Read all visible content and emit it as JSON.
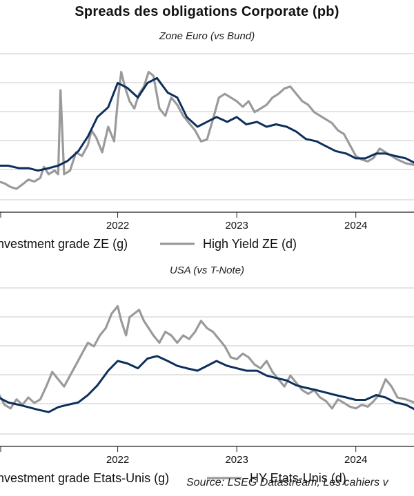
{
  "title": "Spreads des obligations Corporate (pb)",
  "source": "Source: LSEG Datastream, Les cahiers v",
  "colors": {
    "ig": "#0d2f5c",
    "hy": "#9a9a9a",
    "grid": "#c8c8c8"
  },
  "chart_data": [
    {
      "type": "line",
      "subtitle": "Zone Euro (vs Bund)",
      "x_ticks": [
        "2022",
        "2023",
        "2024"
      ],
      "series": [
        {
          "name": "Investment grade ZE (g)",
          "axis": "left",
          "x": [
            2021.0,
            2021.08,
            2021.17,
            2021.25,
            2021.33,
            2021.42,
            2021.5,
            2021.58,
            2021.67,
            2021.75,
            2021.83,
            2021.92,
            2022.0,
            2022.08,
            2022.17,
            2022.25,
            2022.33,
            2022.42,
            2022.5,
            2022.58,
            2022.67,
            2022.75,
            2022.83,
            2022.92,
            2023.0,
            2023.08,
            2023.17,
            2023.25,
            2023.33,
            2023.42,
            2023.5,
            2023.58,
            2023.67,
            2023.75,
            2023.83,
            2023.92,
            2024.0,
            2024.08,
            2024.17,
            2024.25,
            2024.33,
            2024.42,
            2024.5
          ],
          "values": [
            94,
            94,
            93,
            93,
            92,
            93,
            94,
            96,
            100,
            106,
            114,
            118,
            128,
            126,
            122,
            128,
            130,
            124,
            122,
            114,
            110,
            112,
            114,
            112,
            114,
            111,
            112,
            110,
            111,
            110,
            108,
            105,
            104,
            102,
            100,
            99,
            97,
            97,
            99,
            99,
            98,
            97,
            95
          ]
        },
        {
          "name": "High Yield ZE (d)",
          "axis": "right",
          "x": [
            2021.0,
            2021.05,
            2021.1,
            2021.15,
            2021.2,
            2021.25,
            2021.3,
            2021.35,
            2021.38,
            2021.42,
            2021.47,
            2021.5,
            2021.52,
            2021.55,
            2021.6,
            2021.65,
            2021.7,
            2021.75,
            2021.78,
            2021.82,
            2021.87,
            2021.92,
            2021.97,
            2022.0,
            2022.03,
            2022.06,
            2022.1,
            2022.14,
            2022.18,
            2022.22,
            2022.26,
            2022.3,
            2022.35,
            2022.4,
            2022.45,
            2022.5,
            2022.55,
            2022.6,
            2022.65,
            2022.7,
            2022.75,
            2022.8,
            2022.85,
            2022.9,
            2022.95,
            2023.0,
            2023.05,
            2023.1,
            2023.15,
            2023.2,
            2023.25,
            2023.3,
            2023.35,
            2023.4,
            2023.45,
            2023.5,
            2023.55,
            2023.6,
            2023.65,
            2023.7,
            2023.75,
            2023.8,
            2023.85,
            2023.9,
            2023.95,
            2024.0,
            2024.05,
            2024.1,
            2024.15,
            2024.2,
            2024.25,
            2024.3,
            2024.35,
            2024.42,
            2024.5
          ],
          "values": [
            300,
            295,
            285,
            280,
            292,
            305,
            300,
            310,
            340,
            320,
            330,
            320,
            550,
            320,
            330,
            380,
            370,
            400,
            440,
            420,
            380,
            450,
            410,
            520,
            600,
            560,
            520,
            500,
            540,
            560,
            600,
            590,
            500,
            480,
            530,
            510,
            480,
            460,
            440,
            410,
            415,
            470,
            530,
            540,
            530,
            520,
            505,
            520,
            490,
            500,
            510,
            530,
            540,
            555,
            560,
            540,
            520,
            510,
            490,
            480,
            470,
            460,
            440,
            430,
            400,
            370,
            360,
            355,
            365,
            390,
            380,
            370,
            360,
            350,
            345
          ]
        }
      ]
    },
    {
      "type": "line",
      "subtitle": "USA (vs T-Note)",
      "x_ticks": [
        "2022",
        "2023",
        "2024"
      ],
      "series": [
        {
          "name": "Investment grade Etats-Unis (g)",
          "axis": "left",
          "x": [
            2021.0,
            2021.08,
            2021.17,
            2021.25,
            2021.33,
            2021.42,
            2021.5,
            2021.58,
            2021.67,
            2021.75,
            2021.83,
            2021.92,
            2022.0,
            2022.08,
            2022.17,
            2022.25,
            2022.33,
            2022.42,
            2022.5,
            2022.58,
            2022.67,
            2022.75,
            2022.83,
            2022.92,
            2023.0,
            2023.08,
            2023.17,
            2023.25,
            2023.33,
            2023.42,
            2023.5,
            2023.58,
            2023.67,
            2023.75,
            2023.83,
            2023.92,
            2024.0,
            2024.08,
            2024.17,
            2024.25,
            2024.33,
            2024.42,
            2024.5
          ],
          "values": [
            95,
            93,
            92,
            91,
            90,
            89,
            91,
            92,
            93,
            96,
            100,
            106,
            110,
            109,
            107,
            111,
            112,
            110,
            108,
            107,
            106,
            108,
            110,
            108,
            107,
            106,
            106,
            104,
            103,
            102,
            100,
            99,
            98,
            97,
            96,
            95,
            94,
            94,
            96,
            95,
            93,
            92,
            90
          ]
        },
        {
          "name": "HY Etats-Unis (d)",
          "axis": "right",
          "x": [
            2021.0,
            2021.05,
            2021.1,
            2021.15,
            2021.2,
            2021.25,
            2021.3,
            2021.35,
            2021.4,
            2021.45,
            2021.5,
            2021.55,
            2021.6,
            2021.65,
            2021.7,
            2021.75,
            2021.8,
            2021.85,
            2021.9,
            2021.95,
            2022.0,
            2022.03,
            2022.07,
            2022.1,
            2022.14,
            2022.18,
            2022.22,
            2022.26,
            2022.3,
            2022.35,
            2022.4,
            2022.45,
            2022.5,
            2022.55,
            2022.6,
            2022.65,
            2022.7,
            2022.75,
            2022.8,
            2022.85,
            2022.9,
            2022.95,
            2023.0,
            2023.05,
            2023.1,
            2023.15,
            2023.2,
            2023.25,
            2023.3,
            2023.35,
            2023.4,
            2023.45,
            2023.5,
            2023.55,
            2023.6,
            2023.65,
            2023.7,
            2023.75,
            2023.8,
            2023.85,
            2023.9,
            2023.95,
            2024.0,
            2024.05,
            2024.1,
            2024.15,
            2024.2,
            2024.25,
            2024.3,
            2024.35,
            2024.42,
            2024.5
          ],
          "values": [
            360,
            330,
            320,
            345,
            330,
            350,
            335,
            345,
            380,
            420,
            400,
            380,
            410,
            440,
            470,
            500,
            490,
            520,
            540,
            580,
            600,
            560,
            520,
            570,
            580,
            590,
            560,
            540,
            520,
            500,
            530,
            520,
            500,
            520,
            510,
            530,
            560,
            540,
            530,
            510,
            490,
            460,
            455,
            470,
            460,
            440,
            430,
            450,
            420,
            400,
            380,
            410,
            390,
            370,
            360,
            370,
            350,
            340,
            320,
            345,
            335,
            325,
            320,
            330,
            325,
            340,
            360,
            400,
            380,
            350,
            345,
            335
          ]
        }
      ]
    }
  ]
}
